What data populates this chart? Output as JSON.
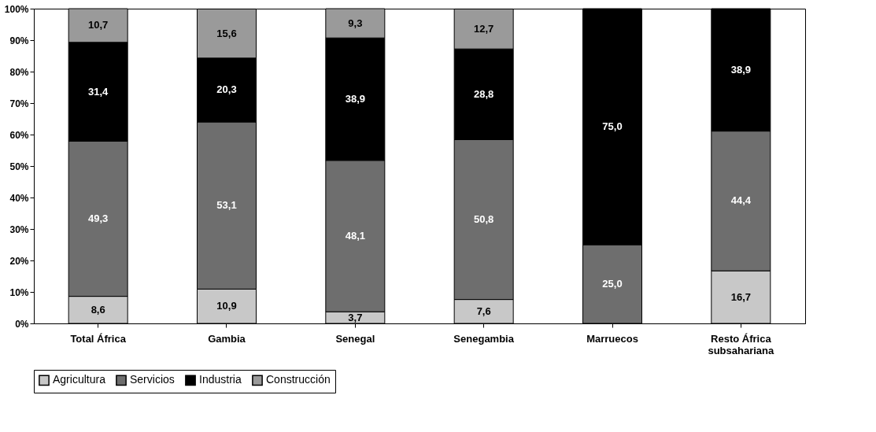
{
  "chart_data": {
    "type": "bar",
    "stacked": true,
    "categories": [
      "Total África",
      "Gambia",
      "Senegal",
      "Senegambia",
      "Marruecos",
      "Resto África subsahariana"
    ],
    "series": [
      {
        "name": "Agricultura",
        "color": "#c8c8c8",
        "values": [
          8.6,
          10.9,
          3.7,
          7.6,
          null,
          16.7
        ],
        "value_labels": [
          "8,6",
          "10,9",
          "3,7",
          "7,6",
          null,
          "16,7"
        ]
      },
      {
        "name": "Servicios",
        "color": "#6e6e6e",
        "values": [
          49.3,
          53.1,
          48.1,
          50.8,
          25.0,
          44.4
        ],
        "value_labels": [
          "49,3",
          "53,1",
          "48,1",
          "50,8",
          "25,0",
          "44,4"
        ]
      },
      {
        "name": "Industria",
        "color": "#000000",
        "values": [
          31.4,
          20.3,
          38.9,
          28.8,
          75.0,
          38.9
        ],
        "value_labels": [
          "31,4",
          "20,3",
          "38,9",
          "28,8",
          "75,0",
          "38,9"
        ]
      },
      {
        "name": "Construcción",
        "color": "#9a9a9a",
        "values": [
          10.7,
          15.6,
          9.3,
          12.7,
          null,
          null
        ],
        "value_labels": [
          "10,7",
          "15,6",
          "9,3",
          "12,7",
          null,
          null
        ]
      }
    ],
    "ylim": [
      0,
      100
    ],
    "yticks": [
      {
        "value": 0,
        "label": "0%"
      },
      {
        "value": 10,
        "label": "10%"
      },
      {
        "value": 20,
        "label": "20%"
      },
      {
        "value": 30,
        "label": "30%"
      },
      {
        "value": 40,
        "label": "40%"
      },
      {
        "value": 50,
        "label": "50%"
      },
      {
        "value": 60,
        "label": "60%"
      },
      {
        "value": 70,
        "label": "70%"
      },
      {
        "value": 80,
        "label": "80%"
      },
      {
        "value": 90,
        "label": "90%"
      },
      {
        "value": 100,
        "label": "100%"
      }
    ],
    "grid": false,
    "legend": "bottom"
  }
}
